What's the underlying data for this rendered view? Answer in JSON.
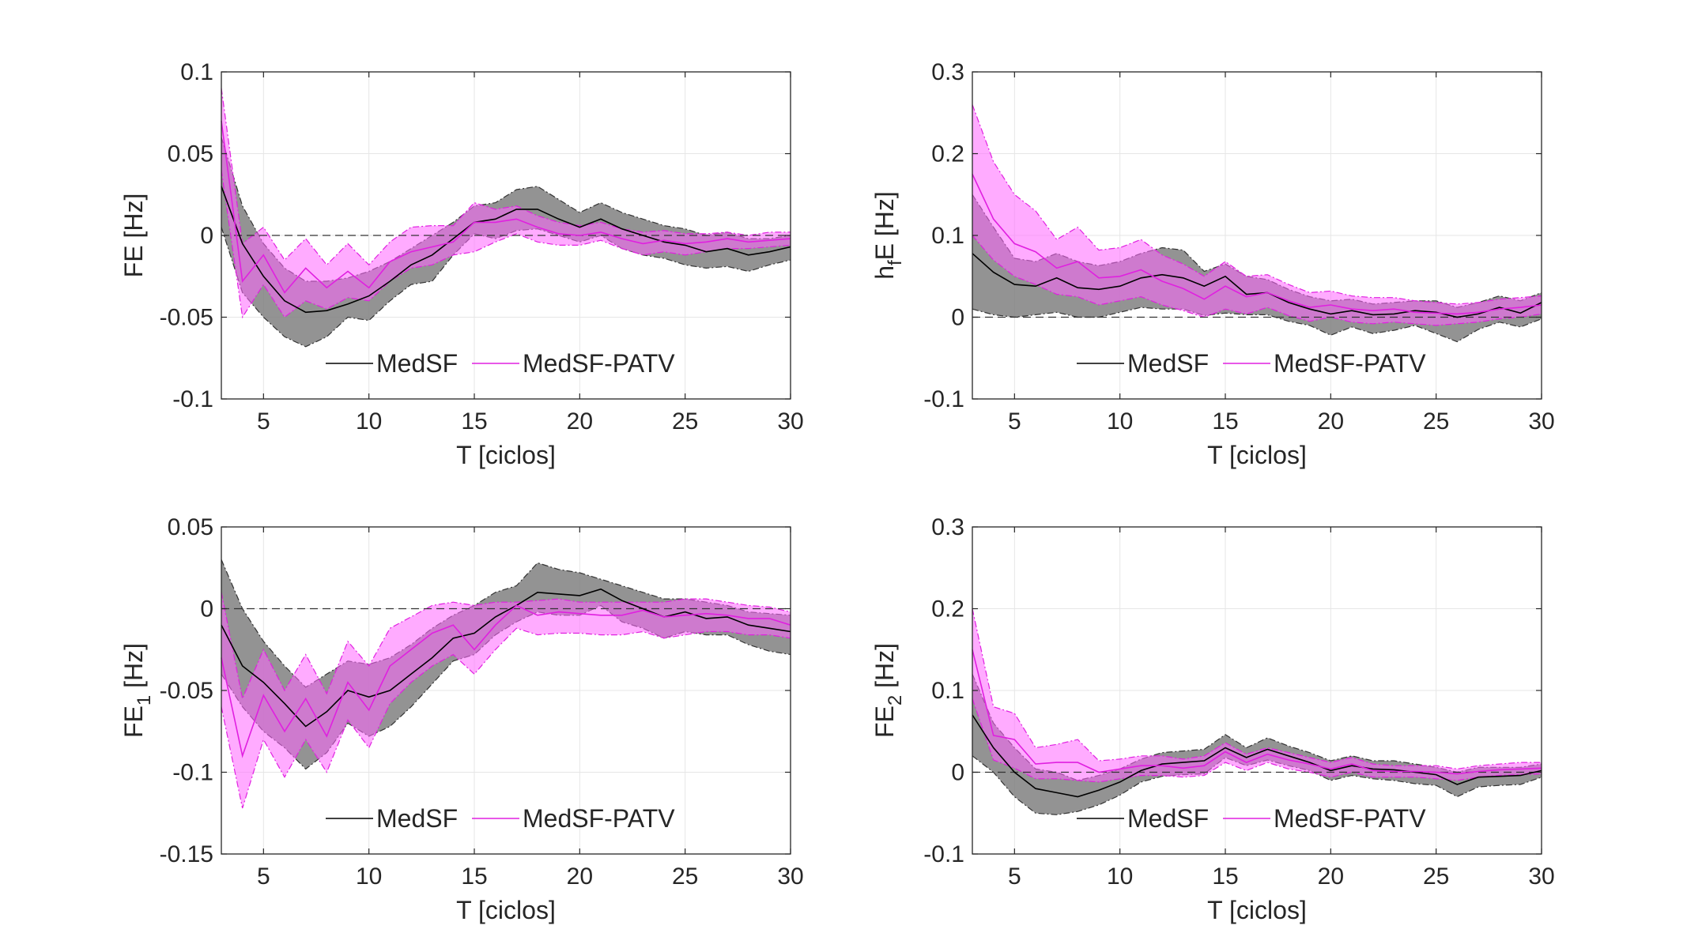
{
  "chart_data": [
    {
      "type": "line",
      "ylabel": "FE [Hz]",
      "xlabel": "T [ciclos]",
      "xlim": [
        3,
        30
      ],
      "ylim": [
        -0.1,
        0.1
      ],
      "xticks": [
        5,
        10,
        15,
        20,
        25,
        30
      ],
      "xtick_labels": [
        "5",
        "10",
        "15",
        "20",
        "25",
        "30"
      ],
      "yticks": [
        -0.1,
        -0.05,
        0,
        0.05,
        0.1
      ],
      "ytick_labels": [
        "-0.1",
        "-0.05",
        "0",
        "0.05",
        "0.1"
      ],
      "grid": true,
      "reference_line": 0,
      "legend": {
        "entries": [
          "MedSF",
          "MedSF-PATV"
        ],
        "placement": "lower-center"
      },
      "x": [
        3,
        4,
        5,
        6,
        7,
        8,
        9,
        10,
        11,
        12,
        13,
        14,
        15,
        16,
        17,
        18,
        19,
        20,
        21,
        22,
        23,
        24,
        25,
        26,
        27,
        28,
        29,
        30
      ],
      "series": [
        {
          "name": "MedSF",
          "color": "#000000",
          "band_color": "#808080",
          "values": [
            0.03,
            -0.005,
            -0.025,
            -0.04,
            -0.047,
            -0.046,
            -0.042,
            -0.037,
            -0.028,
            -0.018,
            -0.012,
            -0.002,
            0.008,
            0.01,
            0.016,
            0.016,
            0.01,
            0.005,
            0.01,
            0.004,
            0.0,
            -0.004,
            -0.006,
            -0.01,
            -0.008,
            -0.012,
            -0.01,
            -0.007
          ],
          "lower": [
            0.005,
            -0.035,
            -0.05,
            -0.062,
            -0.068,
            -0.062,
            -0.05,
            -0.052,
            -0.04,
            -0.03,
            -0.028,
            -0.012,
            0.001,
            -0.002,
            0.003,
            0.004,
            0.0,
            -0.004,
            0.0,
            -0.008,
            -0.012,
            -0.014,
            -0.018,
            -0.02,
            -0.019,
            -0.022,
            -0.018,
            -0.015
          ],
          "upper": [
            0.06,
            0.018,
            -0.005,
            -0.02,
            -0.028,
            -0.028,
            -0.026,
            -0.022,
            -0.016,
            -0.008,
            0.0,
            0.008,
            0.018,
            0.02,
            0.028,
            0.03,
            0.022,
            0.014,
            0.02,
            0.014,
            0.01,
            0.006,
            0.004,
            0.0,
            0.002,
            -0.002,
            -0.002,
            0.0
          ]
        },
        {
          "name": "MedSF-PATV",
          "color": "#e020e0",
          "band_color": "#ff66ff",
          "values": [
            0.07,
            -0.028,
            -0.012,
            -0.035,
            -0.02,
            -0.032,
            -0.022,
            -0.032,
            -0.016,
            -0.01,
            -0.007,
            -0.004,
            0.008,
            0.008,
            0.01,
            0.005,
            0.001,
            0.0,
            0.002,
            -0.002,
            -0.005,
            -0.003,
            -0.005,
            -0.004,
            -0.002,
            -0.004,
            -0.003,
            -0.002
          ],
          "lower": [
            0.04,
            -0.05,
            -0.03,
            -0.05,
            -0.04,
            -0.045,
            -0.038,
            -0.04,
            -0.028,
            -0.02,
            -0.018,
            -0.012,
            -0.01,
            -0.004,
            0.001,
            -0.004,
            -0.006,
            -0.006,
            -0.003,
            -0.008,
            -0.012,
            -0.01,
            -0.012,
            -0.01,
            -0.008,
            -0.008,
            -0.007,
            -0.006
          ],
          "upper": [
            0.09,
            -0.005,
            0.005,
            -0.015,
            -0.002,
            -0.018,
            -0.005,
            -0.018,
            -0.004,
            0.005,
            0.006,
            0.006,
            0.02,
            0.016,
            0.018,
            0.012,
            0.008,
            0.006,
            0.008,
            0.004,
            0.002,
            0.003,
            0.001,
            0.001,
            0.002,
            0.0,
            0.002,
            0.002
          ]
        }
      ]
    },
    {
      "type": "line",
      "ylabel": "h_fE [Hz]",
      "xlabel": "T [ciclos]",
      "xlim": [
        3,
        30
      ],
      "ylim": [
        -0.1,
        0.3
      ],
      "xticks": [
        5,
        10,
        15,
        20,
        25,
        30
      ],
      "xtick_labels": [
        "5",
        "10",
        "15",
        "20",
        "25",
        "30"
      ],
      "yticks": [
        -0.1,
        0,
        0.1,
        0.2,
        0.3
      ],
      "ytick_labels": [
        "-0.1",
        "0",
        "0.1",
        "0.2",
        "0.3"
      ],
      "grid": true,
      "reference_line": 0,
      "legend": {
        "entries": [
          "MedSF",
          "MedSF-PATV"
        ],
        "placement": "lower-center"
      },
      "x": [
        3,
        4,
        5,
        6,
        7,
        8,
        9,
        10,
        11,
        12,
        13,
        14,
        15,
        16,
        17,
        18,
        19,
        20,
        21,
        22,
        23,
        24,
        25,
        26,
        27,
        28,
        29,
        30
      ],
      "series": [
        {
          "name": "MedSF",
          "color": "#000000",
          "band_color": "#808080",
          "values": [
            0.078,
            0.055,
            0.04,
            0.038,
            0.048,
            0.036,
            0.034,
            0.038,
            0.048,
            0.052,
            0.048,
            0.038,
            0.05,
            0.028,
            0.03,
            0.018,
            0.01,
            0.004,
            0.008,
            0.003,
            0.004,
            0.008,
            0.006,
            0.0,
            0.004,
            0.012,
            0.005,
            0.018
          ],
          "lower": [
            0.01,
            0.003,
            0.0,
            0.003,
            0.006,
            0.0,
            0.0,
            0.006,
            0.012,
            0.01,
            0.01,
            0.002,
            0.005,
            0.003,
            0.003,
            -0.005,
            -0.01,
            -0.022,
            -0.012,
            -0.02,
            -0.016,
            -0.01,
            -0.02,
            -0.03,
            -0.015,
            -0.006,
            -0.012,
            -0.002
          ],
          "upper": [
            0.15,
            0.11,
            0.072,
            0.068,
            0.078,
            0.068,
            0.063,
            0.068,
            0.078,
            0.085,
            0.082,
            0.056,
            0.065,
            0.05,
            0.046,
            0.034,
            0.025,
            0.02,
            0.022,
            0.016,
            0.018,
            0.02,
            0.02,
            0.012,
            0.018,
            0.026,
            0.02,
            0.03
          ]
        },
        {
          "name": "MedSF-PATV",
          "color": "#e020e0",
          "band_color": "#ff66ff",
          "values": [
            0.175,
            0.12,
            0.09,
            0.08,
            0.06,
            0.068,
            0.048,
            0.05,
            0.058,
            0.044,
            0.035,
            0.022,
            0.038,
            0.025,
            0.03,
            0.02,
            0.012,
            0.015,
            0.01,
            0.008,
            0.01,
            0.006,
            0.005,
            0.004,
            0.006,
            0.01,
            0.012,
            0.015
          ],
          "lower": [
            0.1,
            0.07,
            0.05,
            0.04,
            0.028,
            0.025,
            0.015,
            0.02,
            0.025,
            0.015,
            0.008,
            0.0,
            0.01,
            0.004,
            0.012,
            0.002,
            -0.005,
            0.0,
            -0.006,
            -0.008,
            -0.006,
            -0.008,
            -0.01,
            -0.008,
            -0.006,
            -0.002,
            0.0,
            0.004
          ],
          "upper": [
            0.26,
            0.19,
            0.15,
            0.13,
            0.095,
            0.11,
            0.082,
            0.085,
            0.095,
            0.076,
            0.065,
            0.05,
            0.068,
            0.05,
            0.052,
            0.04,
            0.03,
            0.032,
            0.026,
            0.024,
            0.024,
            0.02,
            0.018,
            0.016,
            0.018,
            0.022,
            0.024,
            0.026
          ]
        }
      ]
    },
    {
      "type": "line",
      "ylabel": "FE_1 [Hz]",
      "xlabel": "T [ciclos]",
      "xlim": [
        3,
        30
      ],
      "ylim": [
        -0.15,
        0.05
      ],
      "xticks": [
        5,
        10,
        15,
        20,
        25,
        30
      ],
      "xtick_labels": [
        "5",
        "10",
        "15",
        "20",
        "25",
        "30"
      ],
      "yticks": [
        -0.15,
        -0.1,
        -0.05,
        0,
        0.05
      ],
      "ytick_labels": [
        "-0.15",
        "-0.1",
        "-0.05",
        "0",
        "0.05"
      ],
      "grid": true,
      "reference_line": 0,
      "legend": {
        "entries": [
          "MedSF",
          "MedSF-PATV"
        ],
        "placement": "lower-center"
      },
      "x": [
        3,
        4,
        5,
        6,
        7,
        8,
        9,
        10,
        11,
        12,
        13,
        14,
        15,
        16,
        17,
        18,
        19,
        20,
        21,
        22,
        23,
        24,
        25,
        26,
        27,
        28,
        29,
        30
      ],
      "series": [
        {
          "name": "MedSF",
          "color": "#000000",
          "band_color": "#808080",
          "values": [
            -0.01,
            -0.035,
            -0.045,
            -0.058,
            -0.072,
            -0.063,
            -0.05,
            -0.054,
            -0.05,
            -0.04,
            -0.03,
            -0.018,
            -0.015,
            -0.005,
            0.002,
            0.01,
            0.009,
            0.008,
            0.012,
            0.005,
            0.0,
            -0.005,
            -0.002,
            -0.006,
            -0.005,
            -0.01,
            -0.012,
            -0.014
          ],
          "lower": [
            -0.04,
            -0.06,
            -0.075,
            -0.085,
            -0.098,
            -0.088,
            -0.07,
            -0.078,
            -0.072,
            -0.06,
            -0.046,
            -0.032,
            -0.028,
            -0.016,
            -0.008,
            -0.002,
            -0.004,
            -0.004,
            0.002,
            -0.008,
            -0.012,
            -0.018,
            -0.014,
            -0.016,
            -0.016,
            -0.022,
            -0.026,
            -0.028
          ],
          "upper": [
            0.03,
            0.0,
            -0.02,
            -0.035,
            -0.048,
            -0.04,
            -0.032,
            -0.034,
            -0.03,
            -0.022,
            -0.012,
            -0.004,
            0.002,
            0.01,
            0.014,
            0.028,
            0.024,
            0.022,
            0.018,
            0.014,
            0.01,
            0.006,
            0.006,
            0.004,
            0.002,
            -0.002,
            -0.003,
            -0.004
          ]
        },
        {
          "name": "MedSF-PATV",
          "color": "#e020e0",
          "band_color": "#ff66ff",
          "values": [
            -0.03,
            -0.09,
            -0.053,
            -0.075,
            -0.055,
            -0.078,
            -0.045,
            -0.062,
            -0.035,
            -0.025,
            -0.015,
            -0.01,
            -0.025,
            -0.01,
            0.002,
            -0.004,
            -0.002,
            -0.003,
            -0.004,
            -0.004,
            -0.001,
            -0.005,
            -0.004,
            -0.003,
            -0.004,
            -0.006,
            -0.006,
            -0.01
          ],
          "lower": [
            -0.06,
            -0.122,
            -0.08,
            -0.103,
            -0.08,
            -0.1,
            -0.068,
            -0.085,
            -0.058,
            -0.045,
            -0.035,
            -0.028,
            -0.04,
            -0.025,
            -0.012,
            -0.016,
            -0.015,
            -0.015,
            -0.016,
            -0.016,
            -0.014,
            -0.018,
            -0.016,
            -0.014,
            -0.014,
            -0.016,
            -0.016,
            -0.018
          ],
          "upper": [
            0.01,
            -0.055,
            -0.025,
            -0.05,
            -0.028,
            -0.052,
            -0.02,
            -0.035,
            -0.012,
            -0.005,
            0.002,
            0.004,
            0.002,
            0.004,
            0.004,
            0.005,
            0.006,
            0.004,
            0.004,
            0.004,
            0.004,
            0.004,
            0.006,
            0.006,
            0.004,
            0.002,
            0.001,
            -0.002
          ]
        }
      ]
    },
    {
      "type": "line",
      "ylabel": "FE_2 [Hz]",
      "xlabel": "T [ciclos]",
      "xlim": [
        3,
        30
      ],
      "ylim": [
        -0.1,
        0.3
      ],
      "xticks": [
        5,
        10,
        15,
        20,
        25,
        30
      ],
      "xtick_labels": [
        "5",
        "10",
        "15",
        "20",
        "25",
        "30"
      ],
      "yticks": [
        -0.1,
        0,
        0.1,
        0.2,
        0.3
      ],
      "ytick_labels": [
        "-0.1",
        "0",
        "0.1",
        "0.2",
        "0.3"
      ],
      "grid": true,
      "reference_line": 0,
      "legend": {
        "entries": [
          "MedSF",
          "MedSF-PATV"
        ],
        "placement": "lower-center"
      },
      "x": [
        3,
        4,
        5,
        6,
        7,
        8,
        9,
        10,
        11,
        12,
        13,
        14,
        15,
        16,
        17,
        18,
        19,
        20,
        21,
        22,
        23,
        24,
        25,
        26,
        27,
        28,
        29,
        30
      ],
      "series": [
        {
          "name": "MedSF",
          "color": "#000000",
          "band_color": "#808080",
          "values": [
            0.07,
            0.03,
            0.0,
            -0.02,
            -0.025,
            -0.03,
            -0.022,
            -0.012,
            0.002,
            0.01,
            0.012,
            0.014,
            0.03,
            0.018,
            0.028,
            0.02,
            0.012,
            0.002,
            0.008,
            0.004,
            0.003,
            0.0,
            -0.003,
            -0.015,
            -0.006,
            -0.005,
            -0.004,
            0.002
          ],
          "lower": [
            0.02,
            0.0,
            -0.03,
            -0.05,
            -0.052,
            -0.048,
            -0.04,
            -0.028,
            -0.012,
            -0.005,
            -0.003,
            -0.002,
            0.018,
            0.008,
            0.015,
            0.008,
            0.002,
            -0.01,
            -0.004,
            -0.008,
            -0.01,
            -0.014,
            -0.016,
            -0.03,
            -0.018,
            -0.016,
            -0.015,
            -0.006
          ],
          "upper": [
            0.12,
            0.06,
            0.03,
            0.004,
            0.0,
            -0.01,
            -0.004,
            0.004,
            0.016,
            0.024,
            0.026,
            0.028,
            0.046,
            0.03,
            0.042,
            0.032,
            0.024,
            0.014,
            0.02,
            0.014,
            0.014,
            0.01,
            0.006,
            0.0,
            0.006,
            0.006,
            0.006,
            0.01
          ]
        },
        {
          "name": "MedSF-PATV",
          "color": "#e020e0",
          "band_color": "#ff66ff",
          "values": [
            0.15,
            0.045,
            0.04,
            0.01,
            0.012,
            0.012,
            0.0,
            0.004,
            0.008,
            0.008,
            0.005,
            0.008,
            0.025,
            0.012,
            0.022,
            0.015,
            0.01,
            0.004,
            0.01,
            0.002,
            0.001,
            0.001,
            0.0,
            -0.002,
            0.001,
            0.003,
            0.004,
            0.005
          ],
          "lower": [
            0.09,
            0.015,
            0.005,
            -0.008,
            -0.008,
            -0.01,
            -0.012,
            -0.008,
            -0.004,
            -0.004,
            -0.006,
            -0.004,
            0.012,
            0.002,
            0.012,
            0.004,
            0.0,
            -0.006,
            0.0,
            -0.006,
            -0.006,
            -0.006,
            -0.008,
            -0.01,
            -0.006,
            -0.004,
            -0.003,
            -0.002
          ],
          "upper": [
            0.2,
            0.08,
            0.072,
            0.03,
            0.034,
            0.04,
            0.014,
            0.016,
            0.02,
            0.02,
            0.016,
            0.02,
            0.036,
            0.022,
            0.03,
            0.024,
            0.018,
            0.012,
            0.018,
            0.01,
            0.008,
            0.008,
            0.008,
            0.004,
            0.008,
            0.01,
            0.012,
            0.012
          ]
        }
      ]
    }
  ]
}
